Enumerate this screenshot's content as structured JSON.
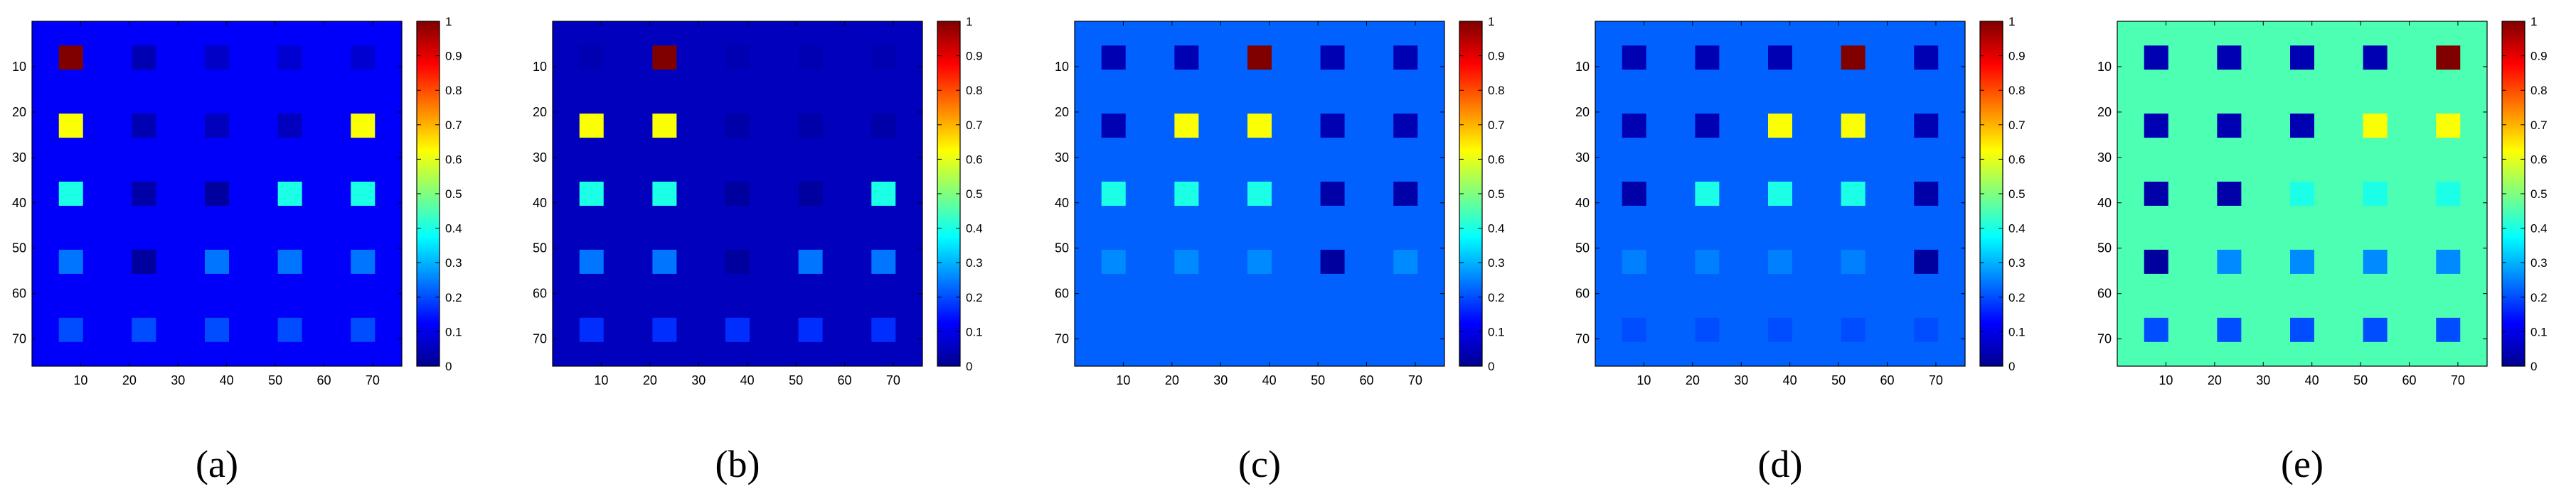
{
  "colorbar": {
    "ticks": [
      "0",
      "0.1",
      "0.2",
      "0.3",
      "0.4",
      "0.5",
      "0.6",
      "0.7",
      "0.8",
      "0.9",
      "1"
    ],
    "colormap": "jet",
    "range": [
      0,
      1
    ]
  },
  "chart_data": [
    {
      "type": "heatmap",
      "caption": "(a)",
      "xticks": [
        "10",
        "20",
        "30",
        "40",
        "50",
        "60",
        "70"
      ],
      "yticks": [
        "10",
        "20",
        "30",
        "40",
        "50",
        "60",
        "70"
      ],
      "xlim": [
        0,
        76
      ],
      "ylim": [
        76,
        0
      ],
      "background": 0.12,
      "grid_x": [
        8,
        23,
        38,
        53,
        68
      ],
      "grid_y": [
        8,
        23,
        38,
        53,
        68
      ],
      "values": [
        [
          1.0,
          0.05,
          0.07,
          0.08,
          0.08
        ],
        [
          0.62,
          0.05,
          0.06,
          0.06,
          0.62
        ],
        [
          0.4,
          0.04,
          0.03,
          0.4,
          0.4
        ],
        [
          0.24,
          0.03,
          0.24,
          0.24,
          0.24
        ],
        [
          0.2,
          0.2,
          0.2,
          0.2,
          0.2
        ]
      ]
    },
    {
      "type": "heatmap",
      "caption": "(b)",
      "xticks": [
        "10",
        "20",
        "30",
        "40",
        "50",
        "60",
        "70"
      ],
      "yticks": [
        "10",
        "20",
        "30",
        "40",
        "50",
        "60",
        "70"
      ],
      "xlim": [
        0,
        76
      ],
      "ylim": [
        76,
        0
      ],
      "background": 0.06,
      "grid_x": [
        8,
        23,
        38,
        53,
        68
      ],
      "grid_y": [
        8,
        23,
        38,
        53,
        68
      ],
      "values": [
        [
          0.05,
          1.0,
          0.05,
          0.05,
          0.05
        ],
        [
          0.62,
          0.62,
          0.04,
          0.04,
          0.04
        ],
        [
          0.4,
          0.4,
          0.03,
          0.03,
          0.4
        ],
        [
          0.24,
          0.24,
          0.03,
          0.24,
          0.24
        ],
        [
          0.17,
          0.17,
          0.17,
          0.17,
          0.17
        ]
      ]
    },
    {
      "type": "heatmap",
      "caption": "(c)",
      "xticks": [
        "10",
        "20",
        "30",
        "40",
        "50",
        "60",
        "70"
      ],
      "yticks": [
        "10",
        "20",
        "30",
        "40",
        "50",
        "60",
        "70"
      ],
      "xlim": [
        0,
        76
      ],
      "ylim": [
        76,
        0
      ],
      "background": 0.22,
      "grid_x": [
        8,
        23,
        38,
        53,
        68
      ],
      "grid_y": [
        8,
        23,
        38,
        53
      ],
      "values": [
        [
          0.05,
          0.05,
          1.0,
          0.05,
          0.05
        ],
        [
          0.05,
          0.62,
          0.62,
          0.05,
          0.05
        ],
        [
          0.4,
          0.4,
          0.4,
          0.04,
          0.04
        ],
        [
          0.26,
          0.26,
          0.26,
          0.03,
          0.26
        ]
      ]
    },
    {
      "type": "heatmap",
      "caption": "(d)",
      "xticks": [
        "10",
        "20",
        "30",
        "40",
        "50",
        "60",
        "70"
      ],
      "yticks": [
        "10",
        "20",
        "30",
        "40",
        "50",
        "60",
        "70"
      ],
      "xlim": [
        0,
        76
      ],
      "ylim": [
        76,
        0
      ],
      "background": 0.22,
      "grid_x": [
        8,
        23,
        38,
        53,
        68
      ],
      "grid_y": [
        8,
        23,
        38,
        53,
        68
      ],
      "values": [
        [
          0.05,
          0.05,
          0.05,
          1.0,
          0.05
        ],
        [
          0.05,
          0.05,
          0.62,
          0.62,
          0.05
        ],
        [
          0.04,
          0.4,
          0.4,
          0.4,
          0.04
        ],
        [
          0.25,
          0.25,
          0.25,
          0.25,
          0.03
        ],
        [
          0.2,
          0.2,
          0.2,
          0.2,
          0.2
        ]
      ]
    },
    {
      "type": "heatmap",
      "caption": "(e)",
      "xticks": [
        "10",
        "20",
        "30",
        "40",
        "50",
        "60",
        "70"
      ],
      "yticks": [
        "10",
        "20",
        "30",
        "40",
        "50",
        "60",
        "70"
      ],
      "xlim": [
        0,
        76
      ],
      "ylim": [
        76,
        0
      ],
      "background": 0.45,
      "grid_x": [
        8,
        23,
        38,
        53,
        68
      ],
      "grid_y": [
        8,
        23,
        38,
        53,
        68
      ],
      "values": [
        [
          0.05,
          0.05,
          0.05,
          0.05,
          1.0
        ],
        [
          0.05,
          0.05,
          0.05,
          0.62,
          0.62
        ],
        [
          0.04,
          0.04,
          0.4,
          0.4,
          0.4
        ],
        [
          0.03,
          0.26,
          0.26,
          0.26,
          0.26
        ],
        [
          0.2,
          0.2,
          0.2,
          0.2,
          0.2
        ]
      ]
    }
  ]
}
